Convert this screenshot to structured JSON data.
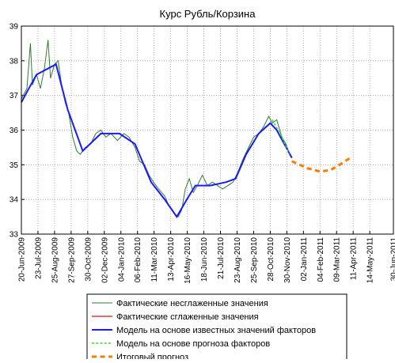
{
  "chart_data": {
    "type": "line",
    "title": "Курс Рубль/Корзина",
    "xlim": [
      "2009-06-20",
      "2011-06-30"
    ],
    "xticks": [
      {
        "value": "2009-06-20",
        "label": "20-Jun-2009"
      },
      {
        "value": "2009-07-23",
        "label": "23-Jul-2009"
      },
      {
        "value": "2009-08-25",
        "label": "25-Aug-2009"
      },
      {
        "value": "2009-09-27",
        "label": "27-Sep-2009"
      },
      {
        "value": "2009-10-30",
        "label": "30-Oct-2009"
      },
      {
        "value": "2009-12-02",
        "label": "02-Dec-2009"
      },
      {
        "value": "2010-01-04",
        "label": "04-Jan-2010"
      },
      {
        "value": "2010-02-06",
        "label": "06-Feb-2010"
      },
      {
        "value": "2010-03-11",
        "label": "11-Mar-2010"
      },
      {
        "value": "2010-04-13",
        "label": "13-Apr-2010"
      },
      {
        "value": "2010-05-16",
        "label": "16-May-2010"
      },
      {
        "value": "2010-06-18",
        "label": "18-Jun-2010"
      },
      {
        "value": "2010-07-21",
        "label": "21-Jul-2010"
      },
      {
        "value": "2010-08-23",
        "label": "23-Aug-2010"
      },
      {
        "value": "2010-09-25",
        "label": "25-Sep-2010"
      },
      {
        "value": "2010-10-28",
        "label": "28-Oct-2010"
      },
      {
        "value": "2010-11-30",
        "label": "30-Nov-2010"
      },
      {
        "value": "2011-01-02",
        "label": "02-Jan-2011"
      },
      {
        "value": "2011-02-04",
        "label": "04-Feb-2011"
      },
      {
        "value": "2011-03-09",
        "label": "09-Mar-2011"
      },
      {
        "value": "2011-04-11",
        "label": "11-Apr-2011"
      },
      {
        "value": "2011-05-14",
        "label": "14-May-2011"
      },
      {
        "value": "2011-06-30",
        "label": "30-Jun-2011"
      }
    ],
    "ylim": [
      33,
      39
    ],
    "yticks": [
      33,
      34,
      35,
      36,
      37,
      38,
      39
    ],
    "grid": true,
    "series": [
      {
        "name": "Фактические несглаженные значения",
        "color": "#2e7d32",
        "width": 1,
        "dash": false,
        "x": [
          "2009-06-20",
          "2009-07-01",
          "2009-07-08",
          "2009-07-12",
          "2009-07-20",
          "2009-07-28",
          "2009-08-05",
          "2009-08-12",
          "2009-08-17",
          "2009-08-25",
          "2009-09-01",
          "2009-09-08",
          "2009-09-15",
          "2009-09-22",
          "2009-09-30",
          "2009-10-08",
          "2009-10-15",
          "2009-10-25",
          "2009-11-05",
          "2009-11-15",
          "2009-11-25",
          "2009-12-05",
          "2009-12-15",
          "2009-12-28",
          "2010-01-10",
          "2010-01-20",
          "2010-02-01",
          "2010-02-10",
          "2010-02-20",
          "2010-03-01",
          "2010-03-10",
          "2010-03-20",
          "2010-04-01",
          "2010-04-10",
          "2010-04-20",
          "2010-04-28",
          "2010-05-05",
          "2010-05-12",
          "2010-05-20",
          "2010-05-28",
          "2010-06-05",
          "2010-06-15",
          "2010-06-25",
          "2010-07-05",
          "2010-07-15",
          "2010-07-25",
          "2010-08-05",
          "2010-08-15",
          "2010-08-25",
          "2010-09-05",
          "2010-09-15",
          "2010-09-25",
          "2010-10-05",
          "2010-10-15",
          "2010-10-25",
          "2010-11-01",
          "2010-11-10",
          "2010-11-20",
          "2010-11-28",
          "2010-12-03"
        ],
        "values": [
          36.9,
          37.2,
          38.5,
          37.3,
          37.6,
          37.2,
          37.8,
          38.6,
          37.5,
          37.9,
          38.0,
          37.3,
          36.8,
          36.5,
          35.8,
          35.4,
          35.3,
          35.5,
          35.6,
          35.9,
          36.0,
          35.8,
          35.9,
          35.7,
          35.9,
          35.8,
          35.5,
          35.1,
          35.0,
          34.7,
          34.5,
          34.3,
          34.1,
          33.8,
          33.6,
          33.5,
          33.7,
          34.3,
          34.6,
          34.2,
          34.4,
          34.7,
          34.4,
          34.5,
          34.4,
          34.3,
          34.4,
          34.5,
          34.8,
          35.2,
          35.5,
          35.8,
          35.9,
          36.1,
          36.4,
          36.2,
          36.3,
          35.8,
          35.6,
          35.4
        ]
      },
      {
        "name": "Фактические сглаженные значения",
        "color": "#e53935",
        "width": 1.5,
        "dash": false,
        "x": [
          "2010-08-20",
          "2010-09-10",
          "2010-10-05",
          "2010-10-28"
        ],
        "values": [
          34.6,
          35.3,
          35.9,
          36.2
        ]
      },
      {
        "name": "Модель на основе известных значений факторов",
        "color": "#1a1aff",
        "width": 2,
        "dash": false,
        "x": [
          "2009-06-20",
          "2009-07-01",
          "2009-07-20",
          "2009-08-28",
          "2009-09-20",
          "2009-10-20",
          "2009-11-25",
          "2010-01-01",
          "2010-02-01",
          "2010-03-05",
          "2010-04-01",
          "2010-04-25",
          "2010-05-15",
          "2010-06-01",
          "2010-07-01",
          "2010-08-01",
          "2010-08-20",
          "2010-09-10",
          "2010-10-05",
          "2010-10-28",
          "2010-11-10",
          "2010-12-10"
        ],
        "values": [
          36.8,
          37.1,
          37.6,
          37.9,
          36.6,
          35.4,
          35.9,
          35.9,
          35.6,
          34.5,
          34.0,
          33.5,
          34.0,
          34.4,
          34.4,
          34.5,
          34.6,
          35.3,
          35.9,
          36.2,
          36.0,
          35.2
        ]
      },
      {
        "name": "Модель на основе прогноза факторов",
        "color": "#33dd33",
        "width": 1.5,
        "dash": true,
        "x": [
          "2010-11-01",
          "2010-11-20",
          "2010-12-05"
        ],
        "values": [
          36.3,
          35.8,
          35.3
        ]
      },
      {
        "name": "Итоговый прогноз",
        "color": "#ff7a00",
        "width": 3,
        "dash": true,
        "x": [
          "2010-12-10",
          "2011-01-10",
          "2011-02-05",
          "2011-02-25",
          "2011-03-15",
          "2011-04-05"
        ],
        "values": [
          35.1,
          34.9,
          34.8,
          34.85,
          35.0,
          35.2
        ]
      }
    ]
  }
}
